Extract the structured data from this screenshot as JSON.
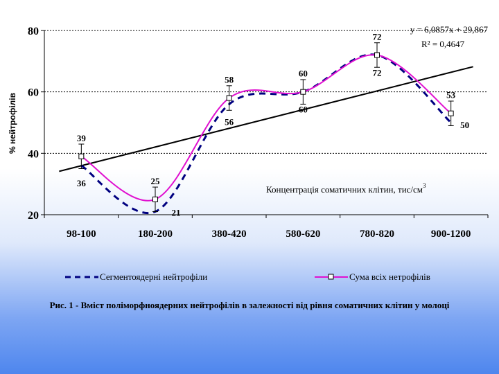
{
  "chart_data": {
    "type": "line",
    "categories": [
      "98-100",
      "180-200",
      "380-420",
      "580-620",
      "780-820",
      "900-1200"
    ],
    "series": [
      {
        "name": "Сегментоядерні нейтрофіли",
        "values": [
          36,
          21,
          56,
          60,
          72,
          50
        ],
        "color": "#000080",
        "style": "dashed",
        "labels": [
          "36",
          "21",
          "56",
          "60",
          "72",
          "50"
        ]
      },
      {
        "name": "Сума всіх нетрофілів",
        "values": [
          39,
          25,
          58,
          60,
          72,
          53
        ],
        "color": "#e010d0",
        "style": "solid",
        "marker": "square",
        "labels": [
          "39",
          "25",
          "58",
          "60",
          "72",
          "53"
        ],
        "error_bars": [
          4,
          4,
          4,
          4,
          4,
          4
        ]
      }
    ],
    "trendline": {
      "equation": "y = 6,0857x + 29,867",
      "r2": "R² = 0,4647",
      "slope": 6.0857,
      "intercept": 29.867,
      "color": "#000000"
    },
    "ylabel": "% нейтрофілів",
    "xlabel": "Концентрація соматичних клітин, тис/см³",
    "ylim": [
      20,
      80
    ],
    "yticks": [
      "20",
      "40",
      "60",
      "80"
    ],
    "grid": "horizontal dotted",
    "legend_position": "bottom"
  },
  "caption": "Рис. 1 - Вміст поліморфноядерних нейтрофілів в залежності від рівня соматичних клітин у молоці",
  "legend": {
    "item1": "Сегментоядерні нейтрофіли",
    "item2": "Сума всіх нетрофілів"
  }
}
